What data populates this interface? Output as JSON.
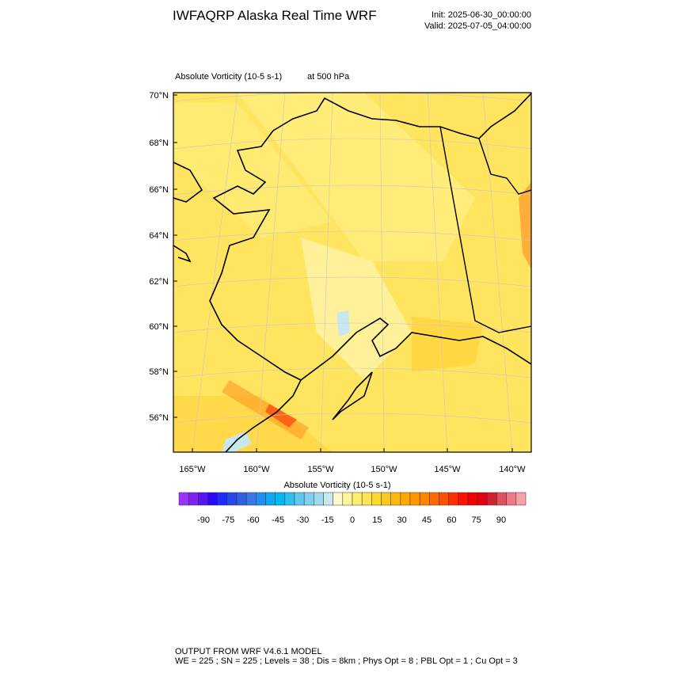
{
  "header": {
    "title": "IWFAQRP Alaska Real Time WRF",
    "init": "Init: 2025-06-30_00:00:00",
    "valid": "Valid: 2025-07-05_04:00:00"
  },
  "plot": {
    "field": "Absolute Vorticity   (10-5 s-1)",
    "level": "at   500 hPa",
    "lat_labels": [
      "70°N",
      "68°N",
      "66°N",
      "64°N",
      "62°N",
      "60°N",
      "58°N",
      "56°N"
    ],
    "lon_labels": [
      "165°W",
      "160°W",
      "155°W",
      "150°W",
      "145°W",
      "140°W"
    ]
  },
  "colorbar": {
    "title": "Absolute Vorticity  (10-5 s-1)",
    "labels": [
      -90,
      -75,
      -60,
      -45,
      -30,
      -15,
      0,
      15,
      30,
      45,
      60,
      75,
      90
    ],
    "colors": [
      "#9b30ff",
      "#7f22f0",
      "#5a14f0",
      "#2a0aff",
      "#1e2dff",
      "#2848e8",
      "#3060e0",
      "#3878e8",
      "#2090f0",
      "#10a8f0",
      "#00b8f0",
      "#30c0f0",
      "#60c8f0",
      "#80d0f0",
      "#a0d8f0",
      "#c8e8f0",
      "#fffacd",
      "#fff59a",
      "#ffee70",
      "#ffe550",
      "#ffd830",
      "#ffc820",
      "#ffb810",
      "#ffa800",
      "#ff9800",
      "#ff8400",
      "#ff6a00",
      "#ff5000",
      "#ff3000",
      "#ff1000",
      "#f00000",
      "#e00010",
      "#d02030",
      "#e05060",
      "#f07888",
      "#f8a0a8"
    ]
  },
  "footer": {
    "line1": "OUTPUT FROM WRF V4.6.1 MODEL",
    "line2": "WE = 225 ; SN = 225 ; Levels = 38 ; Dis = 8km ; Phys Opt = 8 ; PBL Opt = 1 ; Cu Opt = 3"
  }
}
